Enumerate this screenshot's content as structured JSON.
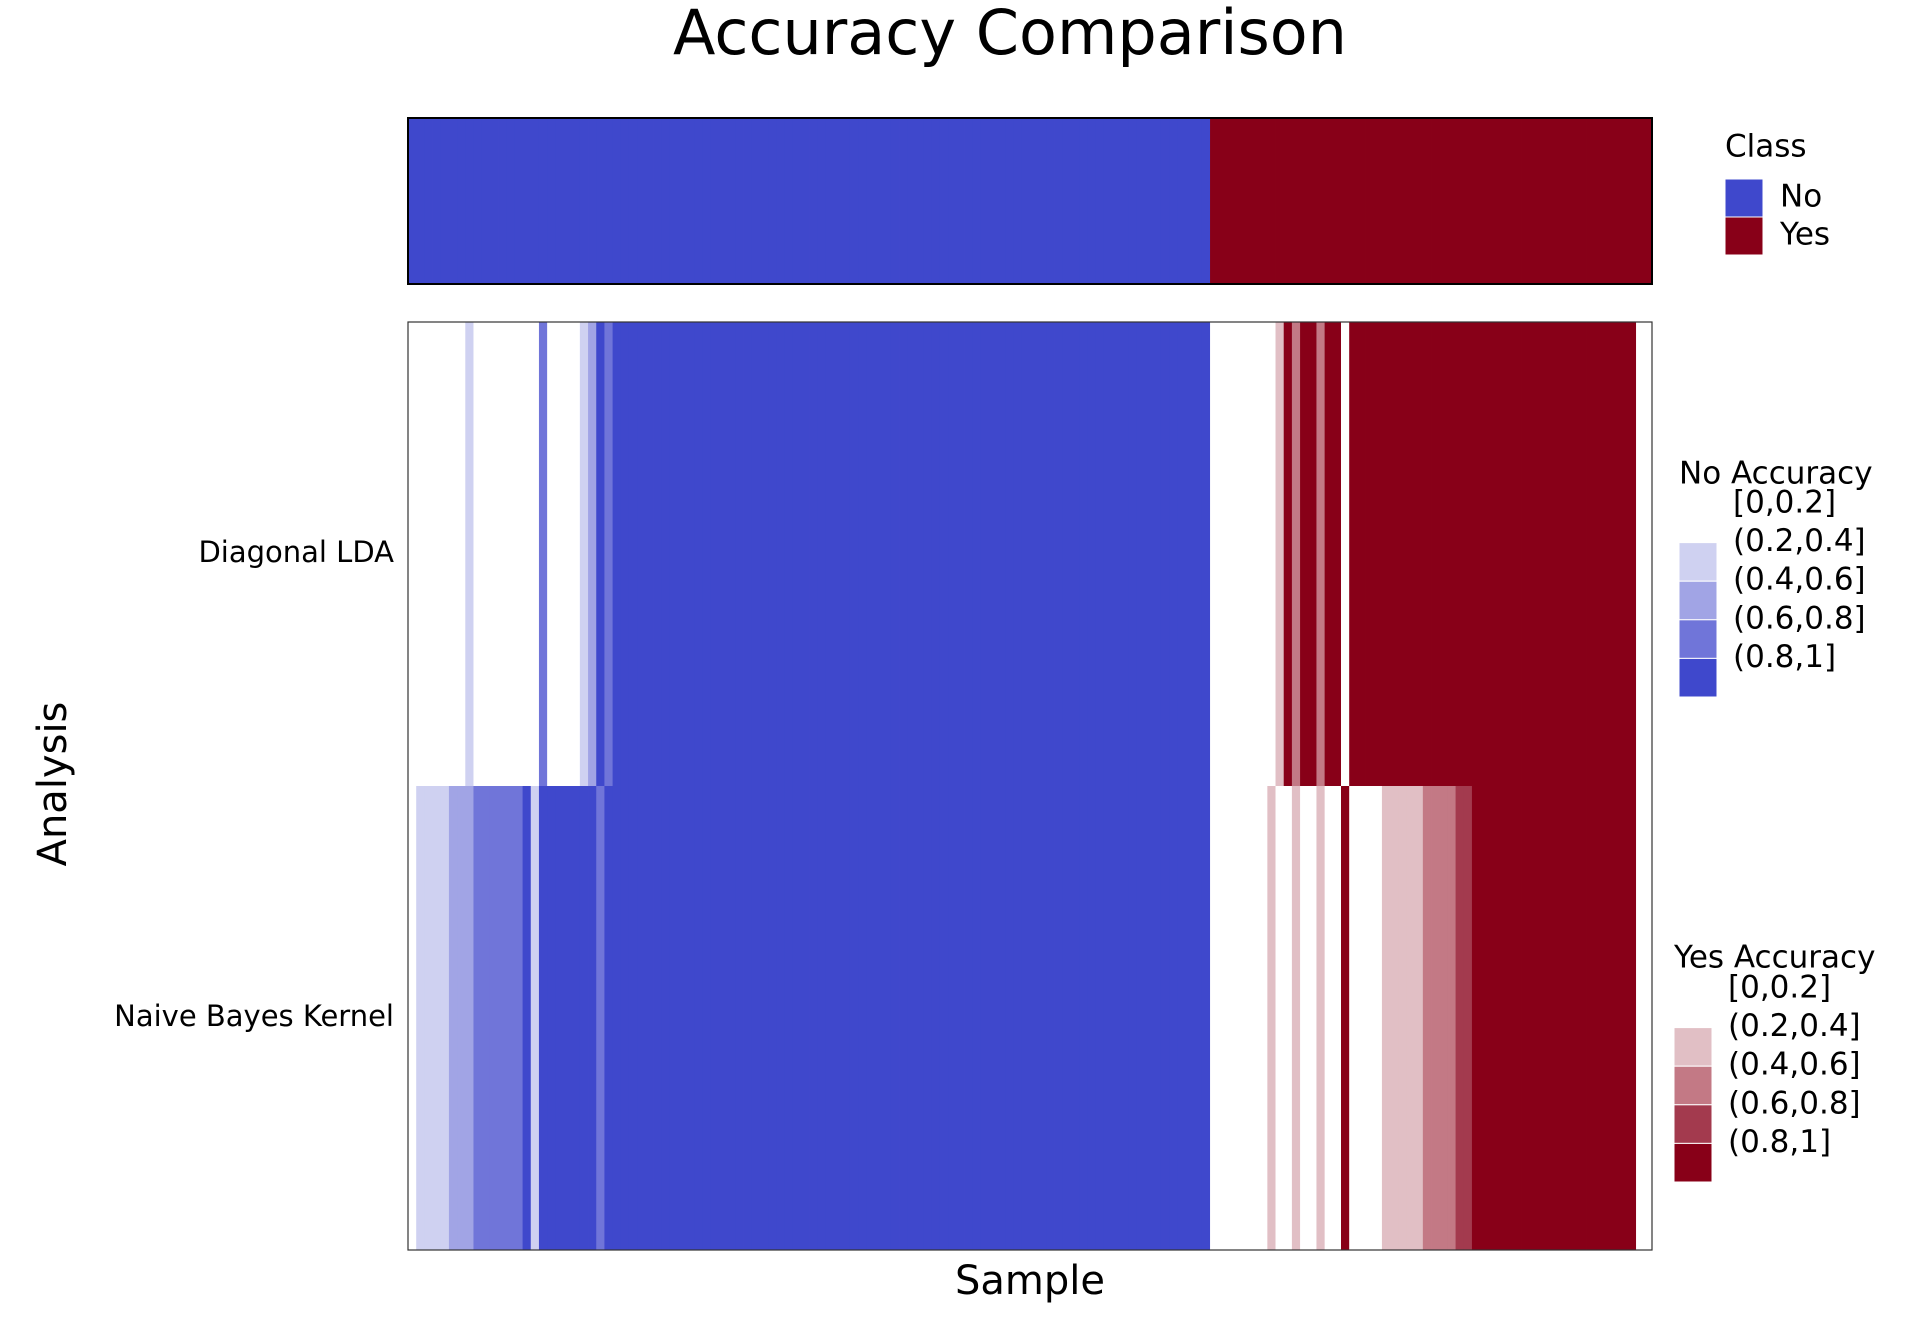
{
  "chart_data": {
    "type": "heatmap",
    "title": "Accuracy Comparison",
    "x_label": "Sample",
    "y_label": "Analysis",
    "class_legend_title": "Class",
    "class_levels": [
      {
        "name": "No",
        "color": "#3f48cc"
      },
      {
        "name": "Yes",
        "color": "#880018"
      }
    ],
    "class": [
      "No",
      "No",
      "No",
      "No",
      "No",
      "No",
      "No",
      "No",
      "No",
      "No",
      "No",
      "No",
      "No",
      "No",
      "No",
      "No",
      "No",
      "No",
      "No",
      "No",
      "No",
      "No",
      "No",
      "No",
      "No",
      "No",
      "No",
      "No",
      "No",
      "No",
      "No",
      "No",
      "No",
      "No",
      "No",
      "No",
      "No",
      "No",
      "No",
      "No",
      "No",
      "No",
      "No",
      "No",
      "No",
      "No",
      "No",
      "No",
      "No",
      "No",
      "No",
      "No",
      "No",
      "No",
      "No",
      "No",
      "No",
      "No",
      "No",
      "No",
      "No",
      "No",
      "No",
      "No",
      "No",
      "No",
      "No",
      "No",
      "No",
      "No",
      "No",
      "No",
      "No",
      "No",
      "No",
      "No",
      "No",
      "No",
      "No",
      "No",
      "No",
      "No",
      "No",
      "No",
      "No",
      "No",
      "No",
      "No",
      "No",
      "No",
      "No",
      "No",
      "No",
      "No",
      "No",
      "No",
      "No",
      "No",
      "Yes",
      "Yes",
      "Yes",
      "Yes",
      "Yes",
      "Yes",
      "Yes",
      "Yes",
      "Yes",
      "Yes",
      "Yes",
      "Yes",
      "Yes",
      "Yes",
      "Yes",
      "Yes",
      "Yes",
      "Yes",
      "Yes",
      "Yes",
      "Yes",
      "Yes",
      "Yes",
      "Yes",
      "Yes",
      "Yes",
      "Yes",
      "Yes",
      "Yes",
      "Yes",
      "Yes",
      "Yes",
      "Yes",
      "Yes",
      "Yes",
      "Yes",
      "Yes",
      "Yes",
      "Yes",
      "Yes",
      "Yes",
      "Yes",
      "Yes",
      "Yes",
      "Yes",
      "Yes",
      "Yes",
      "Yes",
      "Yes",
      "Yes",
      "Yes",
      "Yes",
      "Yes",
      "Yes"
    ],
    "accuracy_bins": [
      0,
      0.2,
      0.4,
      0.6,
      0.8,
      1
    ],
    "accuracy_legends": [
      {
        "title": "No Accuracy",
        "labels": [
          "[0,0.2]",
          "(0.2,0.4]",
          "(0.4,0.6]",
          "(0.6,0.8]",
          "(0.8,1]"
        ],
        "colors": [
          "#ffffff",
          "#cfd1f1",
          "#a1a4e5",
          "#7075d9",
          "#3f48cc"
        ]
      },
      {
        "title": "Yes Accuracy",
        "labels": [
          "[0,0.2]",
          "(0.2,0.4]",
          "(0.4,0.6]",
          "(0.6,0.8]",
          "(0.8,1]"
        ],
        "colors": [
          "#ffffff",
          "#e1bfc5",
          "#c37985",
          "#a33a4e",
          "#880018"
        ]
      }
    ],
    "series": [
      {
        "name": "Diagonal LDA",
        "values": [
          0.1,
          0.1,
          0.1,
          0.1,
          0.1,
          0.1,
          0.1,
          0.3,
          0.1,
          0.1,
          0.1,
          0.1,
          0.1,
          0.1,
          0.1,
          0.1,
          0.7,
          0.1,
          0.1,
          0.1,
          0.1,
          0.3,
          0.5,
          0.9,
          0.7,
          0.9,
          0.9,
          0.9,
          0.9,
          0.9,
          0.9,
          0.9,
          0.9,
          0.9,
          0.9,
          0.9,
          0.9,
          0.9,
          0.9,
          0.9,
          0.9,
          0.9,
          0.9,
          0.9,
          0.9,
          0.9,
          0.9,
          0.9,
          0.9,
          0.9,
          0.9,
          0.9,
          0.9,
          0.9,
          0.9,
          0.9,
          0.9,
          0.9,
          0.9,
          0.9,
          0.9,
          0.9,
          0.9,
          0.9,
          0.9,
          0.9,
          0.9,
          0.9,
          0.9,
          0.9,
          0.9,
          0.9,
          0.9,
          0.9,
          0.9,
          0.9,
          0.9,
          0.9,
          0.9,
          0.9,
          0.9,
          0.9,
          0.9,
          0.9,
          0.9,
          0.9,
          0.9,
          0.9,
          0.9,
          0.9,
          0.9,
          0.9,
          0.9,
          0.9,
          0.9,
          0.9,
          0.9,
          0.9,
          0.1,
          0.1,
          0.1,
          0.1,
          0.1,
          0.1,
          0.1,
          0.1,
          0.3,
          0.9,
          0.5,
          0.9,
          0.9,
          0.5,
          0.9,
          0.9,
          0.1,
          0.9,
          0.9,
          0.9,
          0.9,
          0.9,
          0.9,
          0.9,
          0.9,
          0.9,
          0.9,
          0.9,
          0.9,
          0.9,
          0.9,
          0.9,
          0.9,
          0.9,
          0.9,
          0.9,
          0.9,
          0.9,
          0.9,
          0.9,
          0.9,
          0.9,
          0.9,
          0.9,
          0.9,
          0.9,
          0.9,
          0.9,
          0.9,
          0.9,
          0.9,
          0.9
        ]
      },
      {
        "name": "Naive Bayes Kernel",
        "values": [
          0.1,
          0.3,
          0.3,
          0.3,
          0.3,
          0.5,
          0.5,
          0.5,
          0.7,
          0.7,
          0.7,
          0.7,
          0.7,
          0.7,
          0.9,
          0.3,
          0.9,
          0.9,
          0.9,
          0.9,
          0.9,
          0.9,
          0.9,
          0.7,
          0.9,
          0.9,
          0.9,
          0.9,
          0.9,
          0.9,
          0.9,
          0.9,
          0.9,
          0.9,
          0.9,
          0.9,
          0.9,
          0.9,
          0.9,
          0.9,
          0.9,
          0.9,
          0.9,
          0.9,
          0.9,
          0.9,
          0.9,
          0.9,
          0.9,
          0.9,
          0.9,
          0.9,
          0.9,
          0.9,
          0.9,
          0.9,
          0.9,
          0.9,
          0.9,
          0.9,
          0.9,
          0.9,
          0.9,
          0.9,
          0.9,
          0.9,
          0.9,
          0.9,
          0.9,
          0.9,
          0.9,
          0.9,
          0.9,
          0.9,
          0.9,
          0.9,
          0.9,
          0.9,
          0.9,
          0.9,
          0.9,
          0.9,
          0.9,
          0.9,
          0.9,
          0.9,
          0.9,
          0.9,
          0.9,
          0.9,
          0.9,
          0.9,
          0.9,
          0.9,
          0.9,
          0.9,
          0.9,
          0.9,
          0.1,
          0.1,
          0.1,
          0.1,
          0.1,
          0.1,
          0.1,
          0.3,
          0.1,
          0.1,
          0.3,
          0.1,
          0.1,
          0.3,
          0.1,
          0.1,
          0.9,
          0.1,
          0.1,
          0.1,
          0.1,
          0.3,
          0.3,
          0.3,
          0.3,
          0.3,
          0.5,
          0.5,
          0.5,
          0.5,
          0.7,
          0.7,
          0.9,
          0.9,
          0.9,
          0.9,
          0.9,
          0.9,
          0.9,
          0.9,
          0.9,
          0.9,
          0.9,
          0.9,
          0.9,
          0.9,
          0.9,
          0.9,
          0.9,
          0.9,
          0.9,
          0.9
        ]
      }
    ]
  }
}
